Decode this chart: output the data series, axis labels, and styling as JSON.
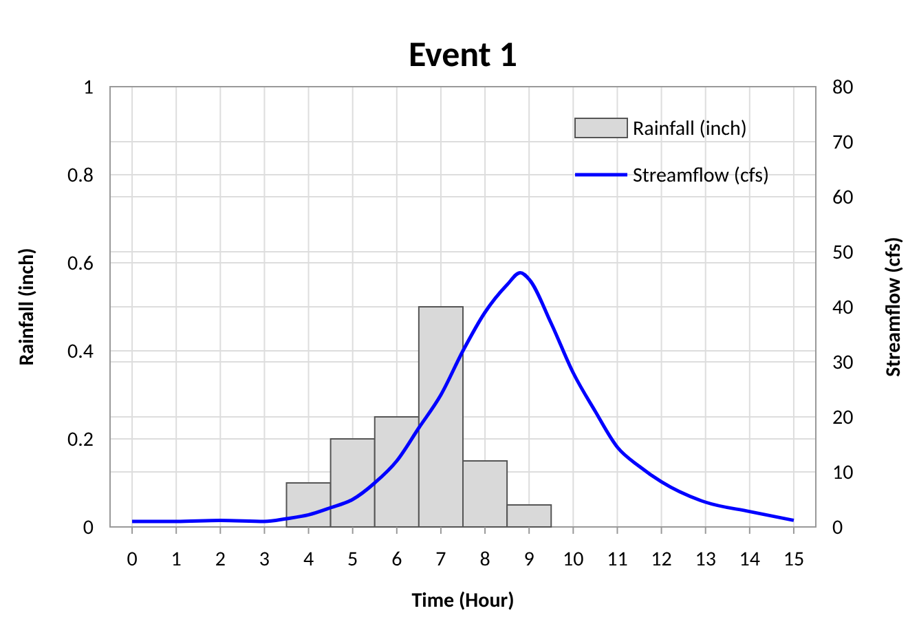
{
  "chart_data": {
    "type": "histogram",
    "title": "Event 1",
    "xlabel": "Time (Hour)",
    "ylabel": "Rainfall (inch)",
    "y2label": "Streamflow (cfs)",
    "bins": [
      3.5,
      4.5,
      5.5,
      6.5,
      7.5,
      8.5,
      9.5
    ],
    "series": [
      {
        "name": "Rainfall (inch)",
        "color": "#d9d9d9",
        "values": [
          0.1,
          0.2,
          0.25,
          0.5,
          0.15,
          0.05
        ]
      },
      {
        "type": "line",
        "name": "Streamflow (cfs)",
        "color": "#0000ff",
        "axis": "y2",
        "x": [
          0,
          1,
          2,
          3,
          3.5,
          4,
          4.5,
          5,
          5.5,
          6,
          6.5,
          7,
          7.5,
          8,
          8.5,
          8.8,
          9,
          9.5,
          10,
          10.5,
          11,
          11.5,
          12,
          13,
          14,
          15
        ],
        "values": [
          1,
          1,
          1.2,
          1,
          1.5,
          2.2,
          3.5,
          5,
          8,
          12,
          18,
          24,
          32,
          39,
          44,
          46.2,
          45,
          37,
          28,
          21,
          14.5,
          11,
          8.2,
          4.5,
          2.8,
          1.2
        ]
      }
    ],
    "xlim": [
      -0.5,
      15.5
    ],
    "xticks": [
      0,
      1,
      2,
      3,
      4,
      5,
      6,
      7,
      8,
      9,
      10,
      11,
      12,
      13,
      14,
      15
    ],
    "ylim": [
      0,
      1
    ],
    "yticks": [
      0,
      0.2,
      0.4,
      0.6,
      0.8,
      1
    ],
    "y2lim": [
      0,
      80
    ],
    "y2ticks": [
      0,
      10,
      20,
      30,
      40,
      50,
      60,
      70,
      80
    ],
    "grid": true,
    "legend": "top right",
    "marker": "none",
    "line_style": "solid"
  }
}
